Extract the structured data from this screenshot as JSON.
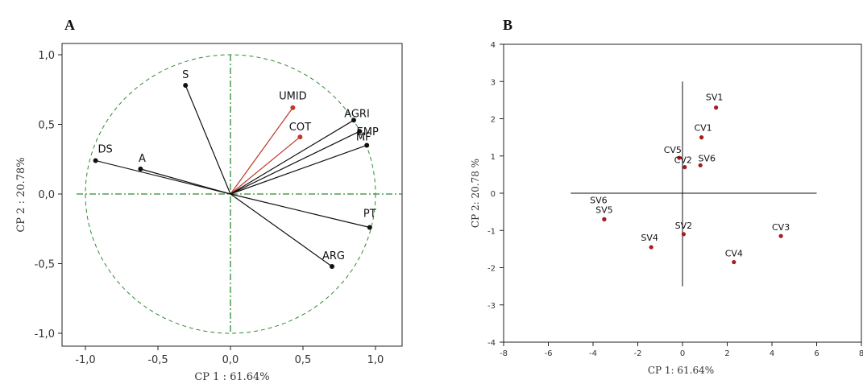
{
  "chart_data": [
    {
      "type": "scatter",
      "panel": "A",
      "xlabel": "CP 1 : 61.64%",
      "ylabel": "CP 2 : 20.78%",
      "xlim": [
        -1.05,
        1.1
      ],
      "ylim": [
        -1.08,
        1.08
      ],
      "xticks": [
        "-1,0",
        "-0,5",
        "0,0",
        "0,5",
        "1,0"
      ],
      "yticks": [
        "1,0",
        "0,5",
        "0,0",
        "-0,5",
        "-1,0"
      ],
      "vectors": [
        {
          "name": "S",
          "x": -0.31,
          "y": 0.78,
          "color": "#111111"
        },
        {
          "name": "UMID",
          "x": 0.43,
          "y": 0.62,
          "color": "#c0392b"
        },
        {
          "name": "COT",
          "x": 0.48,
          "y": 0.41,
          "color": "#c0392b"
        },
        {
          "name": "AGRI",
          "x": 0.85,
          "y": 0.53,
          "color": "#111111"
        },
        {
          "name": "EMP",
          "x": 0.89,
          "y": 0.45,
          "color": "#111111"
        },
        {
          "name": "MF",
          "x": 0.94,
          "y": 0.35,
          "color": "#111111"
        },
        {
          "name": "DS",
          "x": -0.93,
          "y": 0.24,
          "color": "#111111"
        },
        {
          "name": "A",
          "x": -0.62,
          "y": 0.18,
          "color": "#111111"
        },
        {
          "name": "PT",
          "x": 0.96,
          "y": -0.24,
          "color": "#111111"
        },
        {
          "name": "ARG",
          "x": 0.7,
          "y": -0.52,
          "color": "#111111"
        }
      ]
    },
    {
      "type": "scatter",
      "panel": "B",
      "xlabel": "CP 1: 61.64%",
      "ylabel": "CP 2: 20.78 %",
      "xlim": [
        -8,
        8
      ],
      "ylim": [
        -4,
        4
      ],
      "xticks": [
        "-8",
        "-6",
        "-4",
        "-2",
        "0",
        "2",
        "4",
        "6",
        "8"
      ],
      "yticks": [
        "4",
        "3",
        "2",
        "1",
        "0",
        "-1",
        "-2",
        "-3",
        "-4"
      ],
      "points": [
        {
          "name": "SV1",
          "x": 1.5,
          "y": 2.3
        },
        {
          "name": "CV1",
          "x": 0.85,
          "y": 1.5
        },
        {
          "name": "CV5",
          "x": -0.15,
          "y": 0.95
        },
        {
          "name": "CV2",
          "x": 0.1,
          "y": 0.7
        },
        {
          "name": "SV6",
          "x": 0.8,
          "y": 0.75
        },
        {
          "name": "SV6",
          "x": -3.5,
          "y": -0.7
        },
        {
          "name": "SV5",
          "x": -3.5,
          "y": -0.7
        },
        {
          "name": "SV2",
          "x": 0.05,
          "y": -1.1
        },
        {
          "name": "SV4",
          "x": -1.4,
          "y": -1.45
        },
        {
          "name": "CV4",
          "x": 2.3,
          "y": -1.85
        },
        {
          "name": "CV3",
          "x": 4.4,
          "y": -1.15
        }
      ]
    }
  ],
  "panels": {
    "a_label": "A",
    "b_label": "B"
  },
  "colors": {
    "circle": "#2e8b2e",
    "cross": "#2e8b2e",
    "pointB": "#a61c1c"
  }
}
